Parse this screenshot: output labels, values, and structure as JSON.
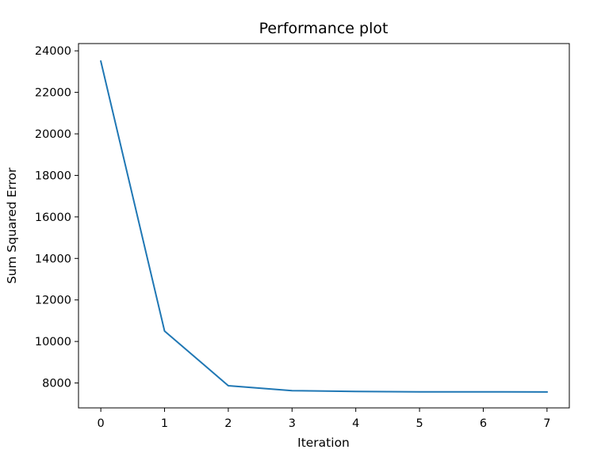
{
  "chart_data": {
    "type": "line",
    "title": "Performance plot",
    "xlabel": "Iteration",
    "ylabel": "Sum Squared Error",
    "x": [
      0,
      1,
      2,
      3,
      4,
      5,
      6,
      7
    ],
    "series": [
      {
        "values": [
          23500,
          10500,
          7870,
          7630,
          7590,
          7575,
          7572,
          7570
        ],
        "color": "#1f77b4"
      }
    ],
    "xlim": [
      -0.35,
      7.35
    ],
    "ylim": [
      6800,
      24350
    ],
    "xticks": [
      0,
      1,
      2,
      3,
      4,
      5,
      6,
      7
    ],
    "yticks": [
      8000,
      10000,
      12000,
      14000,
      16000,
      18000,
      20000,
      22000,
      24000
    ],
    "grid": false,
    "legend": false
  }
}
